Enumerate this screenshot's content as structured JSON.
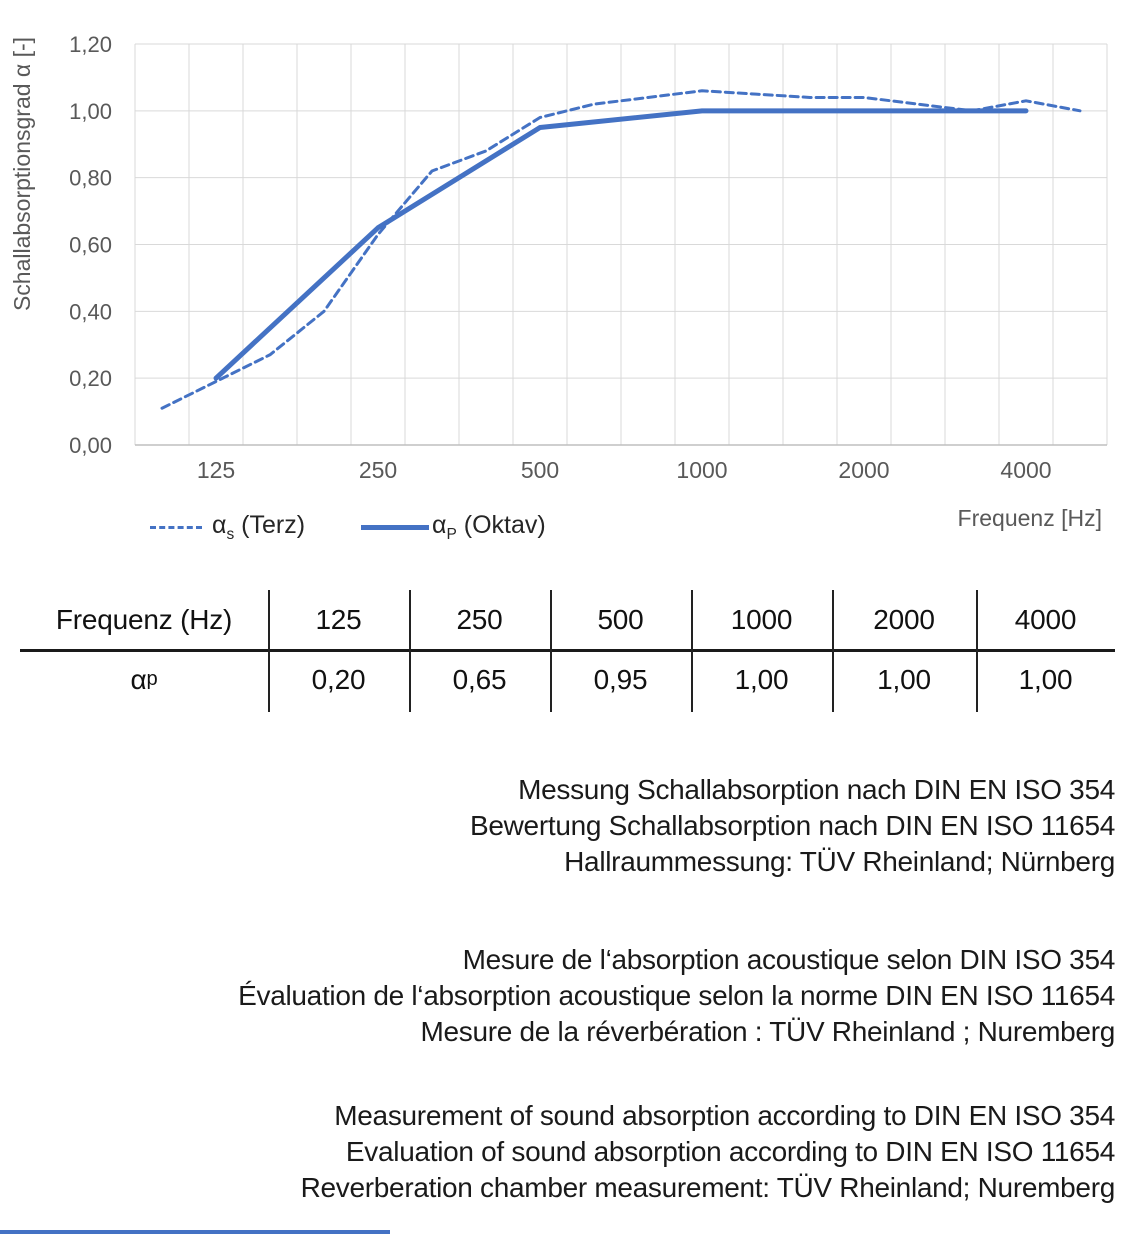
{
  "chart": {
    "x_axis_title": "Frequenz [Hz]",
    "legend": [
      {
        "alpha": "α",
        "sub": "s",
        "rest": " (Terz)"
      },
      {
        "alpha": "α",
        "sub": "P",
        "rest": " (Oktav)"
      }
    ]
  },
  "chart_data": {
    "type": "line",
    "title": "",
    "xlabel": "Frequenz [Hz]",
    "ylabel": "Schallabsorptionsgrad α [-]",
    "x_scale": "logarithmic third-octave categories",
    "ylim": [
      0.0,
      1.2
    ],
    "grid": true,
    "legend_position": "bottom-left",
    "y_tick_labels": [
      "0,00",
      "0,20",
      "0,40",
      "0,60",
      "0,80",
      "1,00",
      "1,20"
    ],
    "categories": [
      100,
      125,
      160,
      200,
      250,
      315,
      400,
      500,
      630,
      800,
      1000,
      1250,
      1600,
      2000,
      2500,
      3150,
      4000,
      5000
    ],
    "x_tick_labels": [
      "125",
      "250",
      "500",
      "1000",
      "2000",
      "4000"
    ],
    "series": [
      {
        "name": "αs (Terz)",
        "line_style": "dashed",
        "color": "#4472C4",
        "x": [
          100,
          125,
          160,
          200,
          250,
          315,
          400,
          500,
          630,
          800,
          1000,
          1250,
          1600,
          2000,
          2500,
          3150,
          4000,
          5000
        ],
        "values": [
          0.11,
          0.19,
          0.27,
          0.4,
          0.63,
          0.82,
          0.88,
          0.98,
          1.02,
          1.04,
          1.06,
          1.05,
          1.04,
          1.04,
          1.02,
          1.0,
          1.03,
          1.0
        ]
      },
      {
        "name": "αP (Oktav)",
        "line_style": "solid",
        "color": "#4472C4",
        "x": [
          125,
          250,
          500,
          1000,
          2000,
          4000
        ],
        "values": [
          0.2,
          0.65,
          0.95,
          1.0,
          1.0,
          1.0
        ]
      }
    ]
  },
  "table": {
    "header": [
      "Frequenz (Hz)",
      "125",
      "250",
      "500",
      "1000",
      "2000",
      "4000"
    ],
    "row_label": {
      "alpha": "α",
      "sub": "p"
    },
    "values": [
      "0,20",
      "0,65",
      "0,95",
      "1,00",
      "1,00",
      "1,00"
    ]
  },
  "notes": {
    "german": [
      "Messung Schallabsorption nach DIN EN ISO 354",
      "Bewertung Schallabsorption nach DIN EN ISO 11654",
      "Hallraummessung: TÜV Rheinland; Nürnberg"
    ],
    "french": [
      "Mesure de l‘absorption acoustique selon DIN ISO 354",
      "Évaluation de l‘absorption acoustique selon la norme DIN EN ISO 11654",
      "Mesure de la réverbération : TÜV Rheinland ; Nuremberg"
    ],
    "english": [
      "Measurement of sound absorption according to DIN EN ISO 354",
      "Evaluation of sound absorption according to DIN EN ISO 11654",
      "Reverberation chamber measurement: TÜV Rheinland; Nuremberg"
    ]
  }
}
